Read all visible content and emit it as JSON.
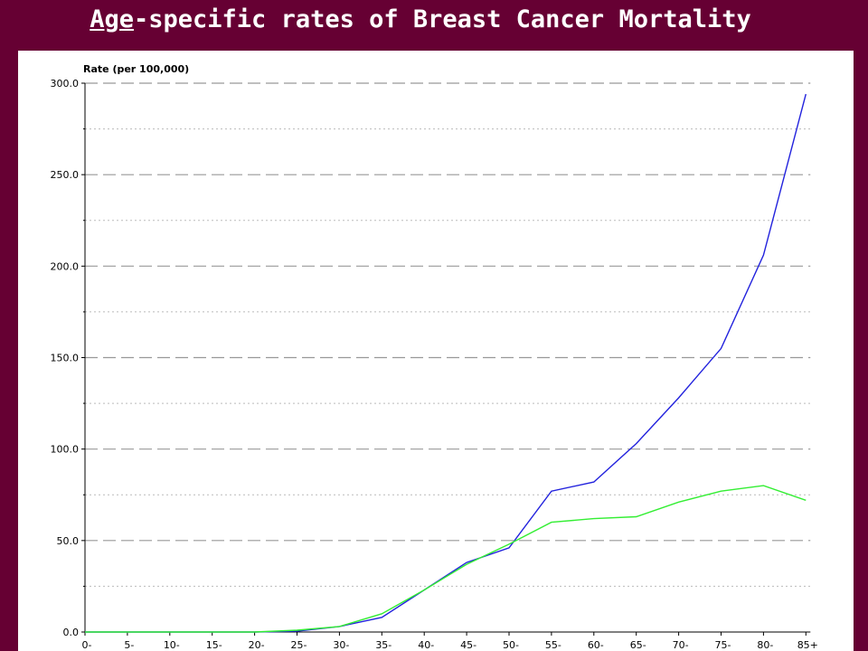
{
  "slide": {
    "title_underlined": "Age",
    "title_rest": "-specific rates of Breast Cancer Mortality"
  },
  "chart_data": {
    "type": "line",
    "title": "Age-specific rates of Breast Cancer Mortality",
    "ylabel": "Rate (per 100,000)",
    "xlabel": "",
    "categories": [
      "0-",
      "5-",
      "10-",
      "15-",
      "20-",
      "25-",
      "30-",
      "35-",
      "40-",
      "45-",
      "50-",
      "55-",
      "60-",
      "65-",
      "70-",
      "75-",
      "80-",
      "85+"
    ],
    "ylim": [
      0,
      300
    ],
    "yticks": [
      "0.0",
      "50.0",
      "100.0",
      "150.0",
      "200.0",
      "250.0",
      "300.0"
    ],
    "grid": true,
    "series": [
      {
        "color": "#2222dd",
        "values": [
          0,
          0,
          0,
          0,
          0,
          0.5,
          3,
          8,
          23,
          38,
          46,
          77,
          82,
          103,
          128,
          155,
          206,
          294
        ]
      },
      {
        "color": "#33ee33",
        "values": [
          0,
          0,
          0,
          0,
          0,
          1,
          3,
          10,
          23,
          37,
          48,
          60,
          62,
          63,
          71,
          77,
          80,
          72
        ]
      }
    ]
  }
}
